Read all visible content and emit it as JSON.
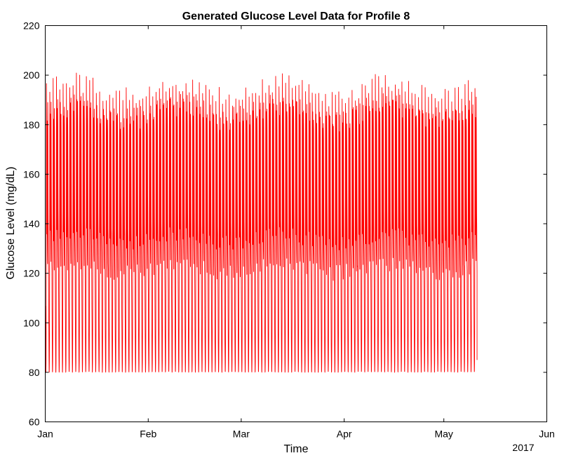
{
  "chart_data": {
    "type": "line",
    "title": "Generated Glucose Level Data for Profile 8",
    "xlabel": "Time",
    "ylabel": "Glucose Level (mg/dL)",
    "year_label": "2017",
    "x_ticks": [
      "Jan",
      "Feb",
      "Mar",
      "Apr",
      "May",
      "Jun"
    ],
    "x_tick_dates": [
      "2017-01-01",
      "2017-02-01",
      "2017-03-01",
      "2017-04-01",
      "2017-05-01",
      "2017-06-01"
    ],
    "xlim": [
      "2017-01-01",
      "2017-06-01"
    ],
    "y_ticks": [
      60,
      80,
      100,
      120,
      140,
      160,
      180,
      200,
      220
    ],
    "ylim": [
      60,
      220
    ],
    "grid": false,
    "series": [
      {
        "color": "#ff0000",
        "x_start": "2017-01-01",
        "x_end": "2017-05-11",
        "sampling": "hourly",
        "daily_profile": [
          {
            "hour": 0,
            "value": 120
          },
          {
            "hour": 1,
            "value": 108
          },
          {
            "hour": 2,
            "value": 96
          },
          {
            "hour": 3,
            "value": 86
          },
          {
            "hour": 4,
            "value": 80
          },
          {
            "hour": 5,
            "value": 80
          },
          {
            "hour": 6,
            "value": 84
          },
          {
            "hour": 7,
            "value": 100
          },
          {
            "hour": 8,
            "value": 144
          },
          {
            "hour": 9,
            "value": 194
          },
          {
            "hour": 10,
            "value": 182
          },
          {
            "hour": 11,
            "value": 150
          },
          {
            "hour": 12,
            "value": 134
          },
          {
            "hour": 13,
            "value": 184
          },
          {
            "hour": 14,
            "value": 168
          },
          {
            "hour": 15,
            "value": 140
          },
          {
            "hour": 16,
            "value": 130
          },
          {
            "hour": 17,
            "value": 122
          },
          {
            "hour": 18,
            "value": 186
          },
          {
            "hour": 19,
            "value": 176
          },
          {
            "hour": 20,
            "value": 156
          },
          {
            "hour": 21,
            "value": 142
          },
          {
            "hour": 22,
            "value": 134
          },
          {
            "hour": 23,
            "value": 126
          }
        ],
        "observed_range": [
          79,
          201
        ],
        "first_value": 79,
        "last_value": 85
      }
    ]
  }
}
